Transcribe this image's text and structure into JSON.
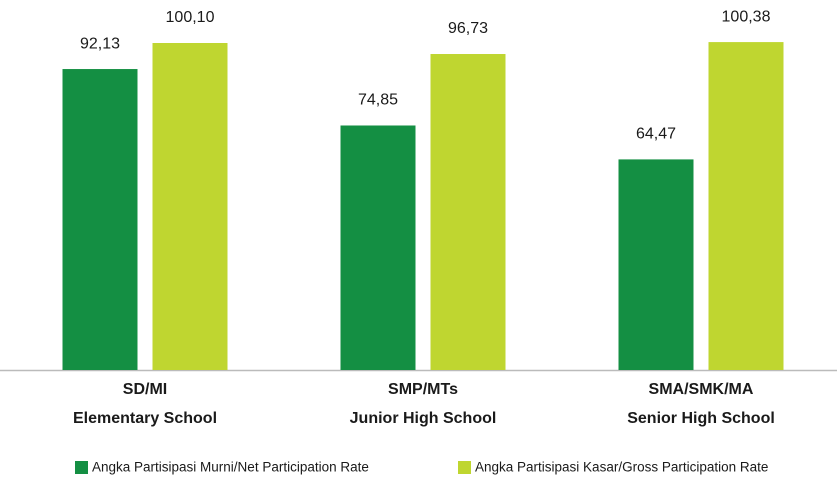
{
  "chart_data": {
    "type": "bar",
    "categories": [
      [
        "SD/MI",
        "Elementary School"
      ],
      [
        "SMP/MTs",
        "Junior High School"
      ],
      [
        "SMA/SMK/MA",
        "Senior High School"
      ]
    ],
    "series": [
      {
        "name": "Angka Partisipasi Murni/Net Participation Rate",
        "color": "#148f43",
        "values": [
          92.13,
          74.85,
          64.47
        ],
        "value_labels": [
          "92,13",
          "74,85",
          "64,47"
        ]
      },
      {
        "name": "Angka Partisipasi Kasar/Gross Participation Rate",
        "color": "#bfd630",
        "values": [
          100.1,
          96.73,
          100.38
        ],
        "value_labels": [
          "100,10",
          "96,73",
          "100,38"
        ]
      }
    ],
    "ylim": [
      0,
      105
    ]
  }
}
